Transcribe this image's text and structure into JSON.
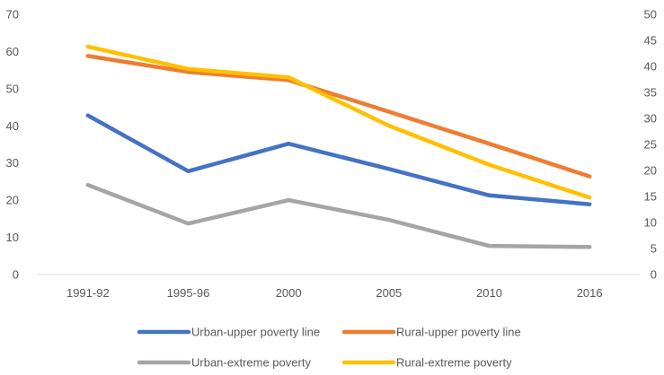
{
  "chart_data": {
    "type": "line",
    "categories": [
      "1991-92",
      "1995-96",
      "2000",
      "2005",
      "2010",
      "2016"
    ],
    "y_left": {
      "ylim": [
        0,
        70
      ],
      "ticks": [
        "0",
        "10",
        "20",
        "30",
        "40",
        "50",
        "60",
        "70"
      ]
    },
    "y_right": {
      "ylim": [
        0,
        50
      ],
      "ticks": [
        "0",
        "5",
        "10",
        "15",
        "20",
        "25",
        "30",
        "35",
        "40",
        "45",
        "50"
      ]
    },
    "grid": false,
    "legend_position": "bottom",
    "series": [
      {
        "name": "Urban-upper poverty line",
        "axis": "left",
        "color": "#4472C4",
        "values": [
          42.8,
          27.8,
          35.2,
          28.4,
          21.3,
          18.9
        ]
      },
      {
        "name": "Rural-upper poverty line",
        "axis": "left",
        "color": "#ED7D31",
        "values": [
          58.8,
          54.5,
          52.3,
          43.8,
          35.2,
          26.4
        ]
      },
      {
        "name": "Urban-extreme poverty",
        "axis": "right",
        "color": "#A5A5A5",
        "values": [
          17.2,
          9.8,
          14.3,
          10.5,
          5.5,
          5.3
        ]
      },
      {
        "name": "Rural-extreme poverty",
        "axis": "right",
        "color": "#FFC000",
        "values": [
          43.8,
          39.5,
          37.9,
          28.6,
          21.1,
          14.8
        ]
      }
    ]
  }
}
